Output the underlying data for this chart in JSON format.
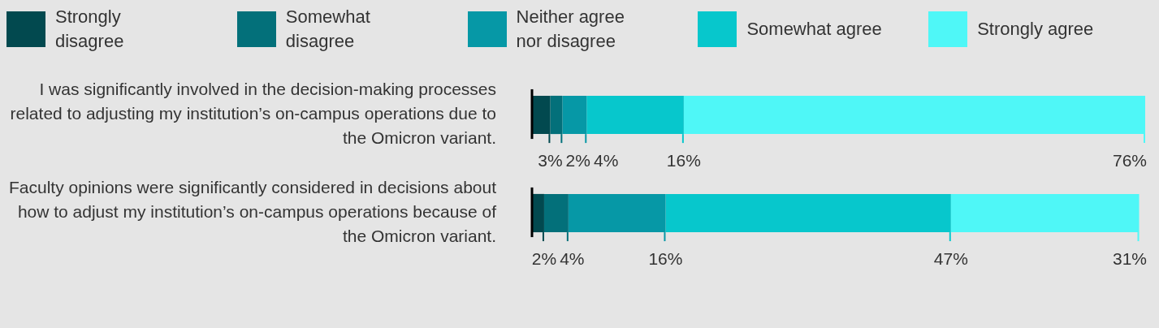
{
  "chart_data": {
    "type": "bar",
    "orientation": "horizontal",
    "stacked": true,
    "legend": "top",
    "categories": [
      "I was significantly involved in the decision-making processes related to adjusting my institution’s on-campus operations due to the Omicron variant.",
      "Faculty opinions were significantly considered in decisions about how to adjust my institution’s on-campus operations because of the Omicron variant."
    ],
    "series": [
      {
        "name": "Strongly disagree",
        "color": "#02494f",
        "values": [
          3,
          2
        ],
        "value_labels": [
          "3%",
          "2%"
        ]
      },
      {
        "name": "Somewhat disagree",
        "color": "#03707a",
        "values": [
          2,
          4
        ],
        "value_labels": [
          "2%",
          "4%"
        ]
      },
      {
        "name": "Neither agree nor disagree",
        "color": "#0698a6",
        "values": [
          4,
          16
        ],
        "value_labels": [
          "4%",
          "16%"
        ]
      },
      {
        "name": "Somewhat agree",
        "color": "#07c7cc",
        "values": [
          16,
          47
        ],
        "value_labels": [
          "16%",
          "47%"
        ]
      },
      {
        "name": "Strongly agree",
        "color": "#4ff7f7",
        "values": [
          76,
          31
        ],
        "value_labels": [
          "76%",
          "31%"
        ]
      }
    ]
  }
}
